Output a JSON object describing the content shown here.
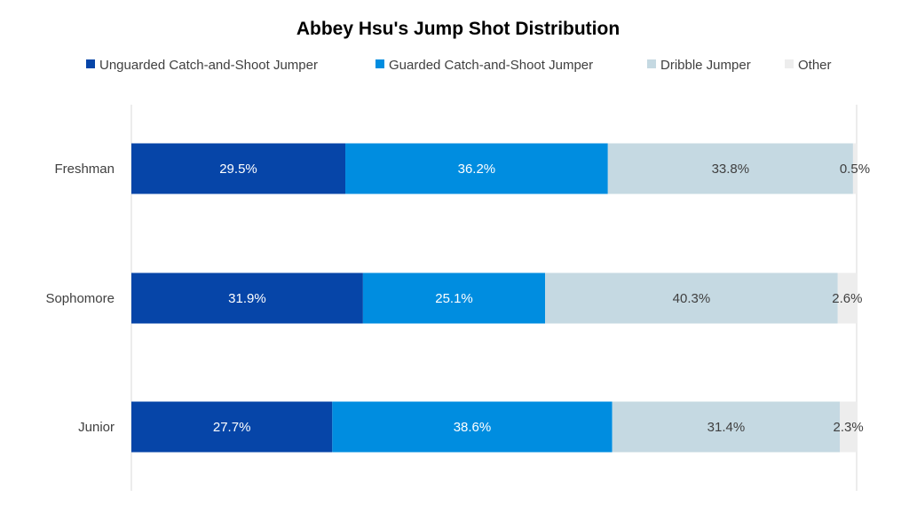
{
  "chart_data": {
    "type": "bar",
    "orientation": "horizontal",
    "stacked": "100%",
    "title": "Abbey Hsu's Jump Shot Distribution",
    "xlabel": "",
    "ylabel": "",
    "xlim": [
      0,
      100
    ],
    "grid": false,
    "legend_position": "top",
    "categories": [
      "Freshman",
      "Sophomore",
      "Junior"
    ],
    "series": [
      {
        "name": "Unguarded Catch-and-Shoot Jumper",
        "color": "#0645A8",
        "label_color": "#FFFFFF",
        "values": [
          29.5,
          31.9,
          27.7
        ],
        "labels": [
          "29.5%",
          "31.9%",
          "27.7%"
        ]
      },
      {
        "name": "Guarded Catch-and-Shoot Jumper",
        "color": "#008DE0",
        "label_color": "#FFFFFF",
        "values": [
          36.2,
          25.1,
          38.6
        ],
        "labels": [
          "36.2%",
          "25.1%",
          "38.6%"
        ]
      },
      {
        "name": "Dribble Jumper",
        "color": "#C5D9E2",
        "label_color": "#404040",
        "values": [
          33.8,
          40.3,
          31.4
        ],
        "labels": [
          "33.8%",
          "40.3%",
          "31.4%"
        ]
      },
      {
        "name": "Other",
        "color": "#EDEDED",
        "label_color": "#404040",
        "values": [
          0.5,
          2.6,
          2.3
        ],
        "labels": [
          "0.5%",
          "2.6%",
          "2.3%"
        ]
      }
    ]
  }
}
